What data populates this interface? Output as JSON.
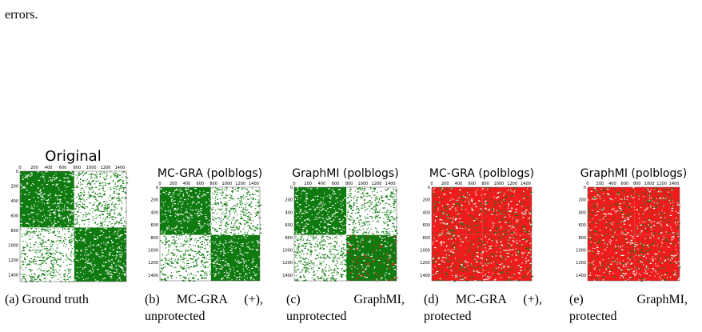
{
  "text_above": "errors.",
  "panels": [
    {
      "title": "Original",
      "xticks": [
        "0",
        "200",
        "400",
        "600",
        "800",
        "1000",
        "1200",
        "1400"
      ],
      "yticks": [
        "0",
        "200",
        "400",
        "600",
        "800",
        "1000",
        "1200",
        "1400"
      ],
      "caption": "(a) Ground truth"
    },
    {
      "title": "MC-GRA (polblogs)",
      "xticks": [
        "0",
        "200",
        "400",
        "600",
        "800",
        "1000",
        "1200",
        "1400"
      ],
      "yticks": [
        "0",
        "200",
        "400",
        "600",
        "800",
        "1000",
        "1200",
        "1400"
      ],
      "caption": "(b) MC-GRA (+), unprotected"
    },
    {
      "title": "GraphMI (polblogs)",
      "xticks": [
        "0",
        "200",
        "400",
        "600",
        "800",
        "1000",
        "1200",
        "1400"
      ],
      "yticks": [
        "0",
        "200",
        "400",
        "600",
        "800",
        "1000",
        "1200",
        "1400"
      ],
      "caption": "(c) GraphMI, unprotected"
    },
    {
      "title": "MC-GRA (polblogs)",
      "xticks": [
        "0",
        "200",
        "400",
        "600",
        "800",
        "1000",
        "1200",
        "1400"
      ],
      "yticks": [
        "0",
        "200",
        "400",
        "600",
        "800",
        "1000",
        "1200",
        "1400"
      ],
      "caption": "(d) MC-GRA (+), protected"
    },
    {
      "title": "GraphMI (polblogs)",
      "xticks": [
        "0",
        "200",
        "400",
        "600",
        "800",
        "1000",
        "1200",
        "1400"
      ],
      "yticks": [
        "0",
        "200",
        "400",
        "600",
        "800",
        "1000",
        "1200",
        "1400"
      ],
      "caption": "(e) GraphMI, protected"
    }
  ]
}
